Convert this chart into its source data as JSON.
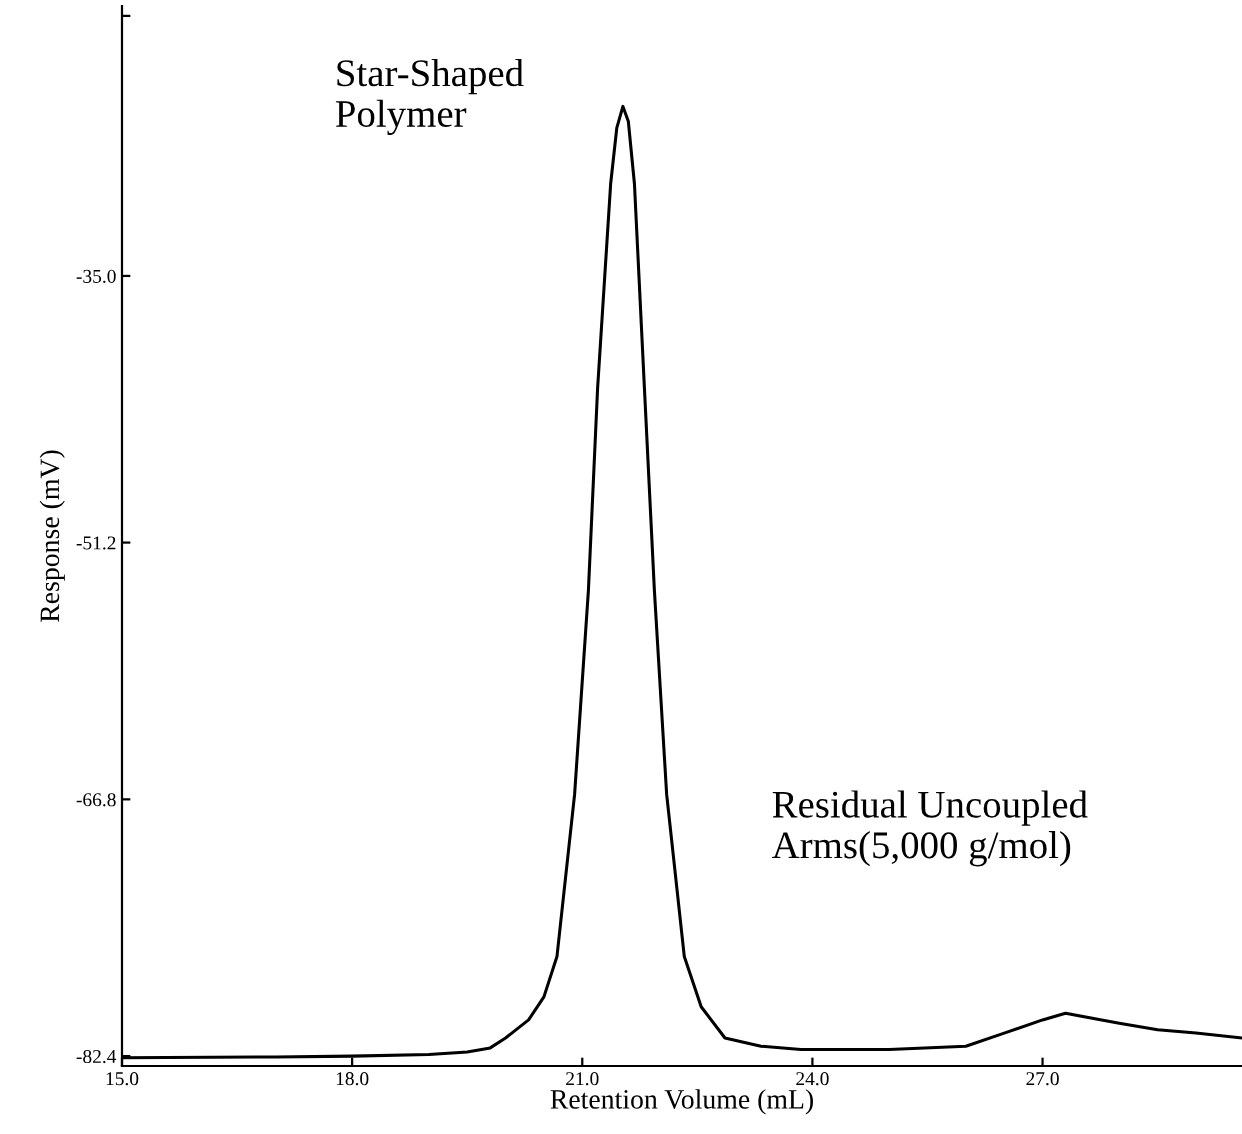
{
  "chart_data": {
    "type": "line",
    "xlabel": "Retention Volume (mL)",
    "ylabel": "Response (mV)",
    "x": [
      15.0,
      17.0,
      18.0,
      19.0,
      19.5,
      19.8,
      20.0,
      20.3,
      20.5,
      20.67,
      20.9,
      21.08,
      21.2,
      21.37,
      21.45,
      21.53,
      21.6,
      21.68,
      21.81,
      21.94,
      22.1,
      22.33,
      22.55,
      22.86,
      23.33,
      23.85,
      25.0,
      26.0,
      26.5,
      27.0,
      27.3,
      28.0,
      28.5,
      29.0,
      29.6
    ],
    "series": [
      {
        "color": "#000000",
        "values": [
          -82.5,
          -82.45,
          -82.4,
          -82.3,
          -82.15,
          -81.9,
          -81.3,
          -80.2,
          -78.8,
          -76.35,
          -66.5,
          -54.1,
          -41.8,
          -29.4,
          -26.0,
          -24.7,
          -25.6,
          -29.4,
          -41.8,
          -54.1,
          -66.5,
          -76.35,
          -79.4,
          -81.3,
          -81.8,
          -82.0,
          -82.0,
          -81.8,
          -81.0,
          -80.2,
          -79.8,
          -80.4,
          -80.8,
          -81.0,
          -81.3
        ]
      }
    ],
    "xlim": [
      15.0,
      29.6
    ],
    "ylim": [
      -83.0,
      -18.6
    ],
    "xticks": [
      {
        "value": 15.0,
        "label": "15.0"
      },
      {
        "value": 18.0,
        "label": "18.0"
      },
      {
        "value": 21.0,
        "label": "21.0"
      },
      {
        "value": 24.0,
        "label": "24.0"
      },
      {
        "value": 27.0,
        "label": "27.0"
      }
    ],
    "yticks": [
      -82.4,
      -66.8,
      -51.2,
      {
        "value": -35.0,
        "label": "-35.0"
      },
      {
        "value": -19.2,
        "label": null
      }
    ],
    "annotations": [
      "Star-Shaped\nPolymer",
      "Residual Uncoupled\nArms(5,000 g/mol)"
    ],
    "grid": false,
    "legend": false,
    "marker": "none",
    "line_style": "solid"
  }
}
